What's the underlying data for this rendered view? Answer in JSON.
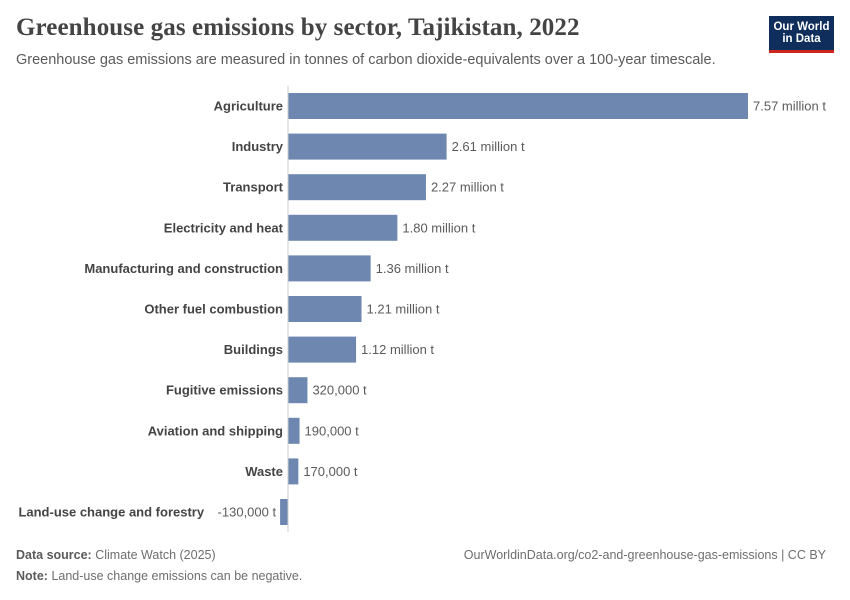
{
  "header": {
    "title": "Greenhouse gas emissions by sector, Tajikistan, 2022",
    "subtitle": "Greenhouse gas emissions are measured in tonnes of carbon dioxide-equivalents over a 100-year timescale."
  },
  "logo": {
    "line1": "Our World",
    "line2": "in Data"
  },
  "footer": {
    "source_label": "Data source:",
    "source_value": "Climate Watch (2025)",
    "link": "OurWorldinData.org/co2-and-greenhouse-gas-emissions | CC BY",
    "note_label": "Note:",
    "note_value": "Land-use change emissions can be negative."
  },
  "colors": {
    "bar": "#6d87b1",
    "axis": "#cccccc",
    "label": "#444444",
    "value": "#5b5b5b"
  },
  "chart_data": {
    "type": "bar",
    "orientation": "horizontal",
    "categories": [
      "Agriculture",
      "Industry",
      "Transport",
      "Electricity and heat",
      "Manufacturing and construction",
      "Other fuel combustion",
      "Buildings",
      "Fugitive emissions",
      "Aviation and shipping",
      "Waste",
      "Land-use change and forestry"
    ],
    "values": [
      7570000,
      2610000,
      2270000,
      1800000,
      1360000,
      1210000,
      1120000,
      320000,
      190000,
      170000,
      -130000
    ],
    "value_labels": [
      "7.57 million t",
      "2.61 million t",
      "2.27 million t",
      "1.80 million t",
      "1.36 million t",
      "1.21 million t",
      "1.12 million t",
      "320,000 t",
      "190,000 t",
      "170,000 t",
      "-130,000 t"
    ],
    "unit": "tonnes CO2e"
  }
}
